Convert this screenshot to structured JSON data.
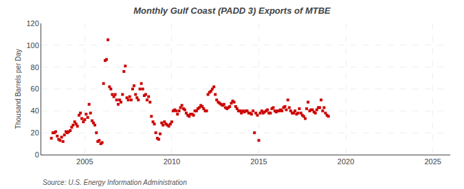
{
  "chart_data": {
    "type": "scatter",
    "title": "Monthly Gulf Coast (PADD 3) Exports of MTBE",
    "ylabel": "Thousand Barrels per Day",
    "annotations": [
      "Source: U.S. Energy Information Administration"
    ],
    "color": "#cc0000",
    "marker": "square",
    "grid": true,
    "xlim": [
      2002.5,
      2026
    ],
    "ylim": [
      0,
      120
    ],
    "xticks": [
      2005,
      2010,
      2015,
      2020,
      2025
    ],
    "yticks": [
      0,
      20,
      40,
      60,
      80,
      100,
      120
    ],
    "x": [
      2003.08,
      2003.17,
      2003.25,
      2003.33,
      2003.42,
      2003.5,
      2003.58,
      2003.67,
      2003.75,
      2003.83,
      2003.92,
      2004.0,
      2004.08,
      2004.17,
      2004.25,
      2004.33,
      2004.42,
      2004.5,
      2004.58,
      2004.67,
      2004.75,
      2004.83,
      2004.92,
      2005.0,
      2005.08,
      2005.17,
      2005.25,
      2005.33,
      2005.42,
      2005.5,
      2005.58,
      2005.67,
      2005.75,
      2005.83,
      2005.92,
      2006.0,
      2006.08,
      2006.17,
      2006.25,
      2006.33,
      2006.42,
      2006.5,
      2006.58,
      2006.67,
      2006.75,
      2006.83,
      2006.92,
      2007.0,
      2007.08,
      2007.17,
      2007.25,
      2007.33,
      2007.42,
      2007.5,
      2007.58,
      2007.67,
      2007.75,
      2007.83,
      2007.92,
      2008.0,
      2008.08,
      2008.17,
      2008.25,
      2008.33,
      2008.42,
      2008.5,
      2008.58,
      2008.67,
      2008.75,
      2008.83,
      2008.92,
      2009.0,
      2009.08,
      2009.17,
      2009.25,
      2009.33,
      2009.42,
      2009.5,
      2009.58,
      2009.67,
      2009.75,
      2009.83,
      2009.92,
      2010.0,
      2010.08,
      2010.17,
      2010.25,
      2010.33,
      2010.42,
      2010.5,
      2010.58,
      2010.67,
      2010.75,
      2010.83,
      2010.92,
      2011.0,
      2011.08,
      2011.17,
      2011.25,
      2011.33,
      2011.42,
      2011.5,
      2011.58,
      2011.67,
      2011.75,
      2011.83,
      2011.92,
      2012.0,
      2012.08,
      2012.17,
      2012.25,
      2012.33,
      2012.42,
      2012.5,
      2012.58,
      2012.67,
      2012.75,
      2012.83,
      2012.92,
      2013.0,
      2013.08,
      2013.17,
      2013.25,
      2013.33,
      2013.42,
      2013.5,
      2013.58,
      2013.67,
      2013.75,
      2013.83,
      2013.92,
      2014.0,
      2014.08,
      2014.17,
      2014.25,
      2014.33,
      2014.42,
      2014.5,
      2014.58,
      2014.67,
      2014.75,
      2014.83,
      2014.92,
      2015.0,
      2015.08,
      2015.17,
      2015.25,
      2015.33,
      2015.42,
      2015.5,
      2015.58,
      2015.67,
      2015.75,
      2015.83,
      2015.92,
      2016.0,
      2016.08,
      2016.17,
      2016.25,
      2016.33,
      2016.42,
      2016.5,
      2016.58,
      2016.67,
      2016.75,
      2016.83,
      2016.92,
      2017.0,
      2017.08,
      2017.17,
      2017.25,
      2017.33,
      2017.42,
      2017.5,
      2017.58,
      2017.67,
      2017.75,
      2017.83,
      2017.92,
      2018.0,
      2018.08,
      2018.17,
      2018.25,
      2018.33,
      2018.42,
      2018.5,
      2018.58,
      2018.67,
      2018.75,
      2018.83,
      2018.92,
      2019.0
    ],
    "values": [
      15,
      20,
      20,
      21,
      17,
      14,
      13,
      16,
      12,
      18,
      21,
      20,
      21,
      22,
      25,
      27,
      30,
      28,
      26,
      36,
      38,
      33,
      30,
      32,
      37,
      34,
      46,
      38,
      31,
      29,
      27,
      20,
      12,
      13,
      10,
      11,
      65,
      86,
      87,
      105,
      62,
      60,
      55,
      53,
      55,
      50,
      46,
      50,
      48,
      55,
      76,
      81,
      52,
      50,
      53,
      50,
      60,
      63,
      55,
      52,
      50,
      60,
      65,
      60,
      54,
      55,
      50,
      53,
      48,
      35,
      30,
      28,
      20,
      15,
      14,
      19,
      29,
      27,
      30,
      28,
      27,
      26,
      28,
      30,
      40,
      41,
      40,
      37,
      40,
      43,
      45,
      42,
      41,
      38,
      36,
      35,
      37,
      37,
      36,
      40,
      40,
      42,
      43,
      45,
      44,
      42,
      40,
      40,
      55,
      57,
      58,
      60,
      62,
      55,
      50,
      48,
      47,
      46,
      45,
      46,
      43,
      42,
      43,
      44,
      47,
      49,
      48,
      44,
      42,
      40,
      40,
      38,
      40,
      39,
      40,
      40,
      38,
      38,
      37,
      40,
      20,
      38,
      36,
      13,
      38,
      40,
      38,
      39,
      40,
      41,
      38,
      38,
      42,
      43,
      40,
      39,
      40,
      40,
      41,
      40,
      43,
      44,
      41,
      50,
      43,
      40,
      38,
      38,
      40,
      37,
      38,
      42,
      38,
      36,
      35,
      33,
      42,
      48,
      40,
      41,
      41,
      39,
      38,
      41,
      43,
      43,
      50,
      40,
      43,
      38,
      36,
      35
    ]
  }
}
